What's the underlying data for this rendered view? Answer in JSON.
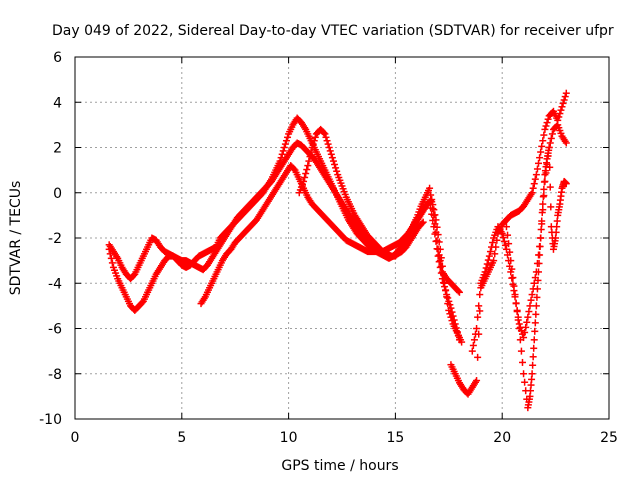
{
  "chart_data": {
    "type": "scatter",
    "title": "Day 049 of 2022, Sidereal Day-to-day VTEC variation (SDTVAR) for receiver ufpr",
    "xlabel": "GPS time / hours",
    "ylabel": "SDTVAR / TECUs",
    "xlim": [
      0,
      25
    ],
    "ylim": [
      -10,
      6
    ],
    "xticks": [
      "0",
      "5",
      "10",
      "15",
      "20",
      "25"
    ],
    "yticks": [
      "-10",
      "-8",
      "-6",
      "-4",
      "-2",
      "0",
      "2",
      "4",
      "6"
    ],
    "grid": true,
    "marker": "+",
    "marker_color": "#ff0000",
    "series": [
      {
        "x": [
          1.6,
          1.8,
          2.0,
          2.2,
          2.4,
          2.6,
          2.8,
          3.0,
          3.2,
          3.4,
          3.6,
          3.8,
          4.0,
          4.2,
          4.4,
          4.6,
          4.8,
          5.0,
          5.2,
          5.4,
          5.6,
          5.8,
          6.0,
          6.2,
          6.4,
          6.6,
          6.8,
          7.0,
          7.2,
          7.4,
          7.6,
          7.8,
          8.0,
          8.2,
          8.4,
          8.6,
          8.8,
          9.0,
          9.2,
          9.4,
          9.6,
          9.8,
          10.0,
          10.2,
          10.4,
          10.6,
          10.8,
          11.0,
          11.2,
          11.4,
          11.6,
          11.8,
          12.0,
          12.2,
          12.4,
          12.6,
          12.8,
          13.0,
          13.2,
          13.4,
          13.6,
          13.8,
          14.0,
          14.2,
          14.4,
          14.6,
          14.8,
          15.0,
          15.2,
          15.4,
          15.6,
          15.8,
          16.0,
          16.2,
          16.4,
          16.6,
          16.8,
          17.0,
          17.2,
          17.4,
          17.6,
          17.8,
          18.0
        ],
        "y": [
          -2.5,
          -3.3,
          -3.8,
          -4.2,
          -4.6,
          -5.0,
          -5.2,
          -5.0,
          -4.8,
          -4.4,
          -4.0,
          -3.6,
          -3.3,
          -3.0,
          -2.8,
          -2.8,
          -3.0,
          -3.2,
          -3.3,
          -3.2,
          -3.0,
          -2.8,
          -2.7,
          -2.6,
          -2.5,
          -2.4,
          -2.0,
          -1.8,
          -1.6,
          -1.4,
          -1.2,
          -1.0,
          -0.8,
          -0.6,
          -0.4,
          -0.2,
          0.0,
          0.3,
          0.6,
          1.0,
          1.4,
          2.0,
          2.6,
          3.0,
          3.3,
          3.1,
          2.8,
          2.4,
          2.0,
          1.6,
          1.2,
          0.8,
          0.4,
          0.0,
          -0.4,
          -0.8,
          -1.2,
          -1.5,
          -1.8,
          -2.0,
          -2.2,
          -2.4,
          -2.5,
          -2.6,
          -2.6,
          -2.7,
          -2.8,
          -2.8,
          -2.6,
          -2.3,
          -1.9,
          -1.5,
          -1.1,
          -0.6,
          -0.2,
          0.2,
          -1.0,
          -2.5,
          -3.5,
          -3.8,
          -4.0,
          -4.2,
          -4.4
        ]
      },
      {
        "x": [
          1.6,
          1.8,
          2.0,
          2.2,
          2.4,
          2.6,
          2.8,
          3.0,
          3.2,
          3.4,
          3.6,
          3.8,
          4.0,
          4.2,
          4.4,
          4.6,
          4.8,
          5.0,
          5.2,
          5.4,
          5.6,
          5.8,
          6.0,
          6.2,
          6.4,
          6.6,
          6.8,
          7.0,
          7.2,
          7.4,
          7.6,
          7.8,
          8.0,
          8.2,
          8.4,
          8.6,
          8.8,
          9.0,
          9.2,
          9.4,
          9.6,
          9.8,
          10.0,
          10.2,
          10.4,
          10.6,
          10.8,
          11.0,
          11.2,
          11.4,
          11.6,
          11.8,
          12.0,
          12.2,
          12.4,
          12.6,
          12.8,
          13.0,
          13.2,
          13.4,
          13.6,
          13.8,
          14.0,
          14.2,
          14.4,
          14.6,
          14.8,
          15.0,
          15.2,
          15.4,
          15.6,
          15.8,
          16.0,
          16.2,
          16.4,
          16.6,
          16.8,
          17.0,
          17.2,
          17.4,
          17.6,
          17.8,
          18.0
        ],
        "y": [
          -2.3,
          -2.6,
          -2.9,
          -3.3,
          -3.6,
          -3.8,
          -3.6,
          -3.2,
          -2.8,
          -2.4,
          -2.0,
          -2.1,
          -2.4,
          -2.6,
          -2.7,
          -2.8,
          -2.9,
          -3.0,
          -3.0,
          -3.1,
          -3.2,
          -3.3,
          -3.4,
          -3.2,
          -2.9,
          -2.6,
          -2.3,
          -2.0,
          -1.7,
          -1.4,
          -1.1,
          -0.9,
          -0.7,
          -0.5,
          -0.3,
          -0.1,
          0.1,
          0.3,
          0.5,
          0.8,
          1.1,
          1.4,
          1.7,
          2.0,
          2.2,
          2.1,
          1.9,
          1.7,
          1.5,
          1.2,
          0.9,
          0.6,
          0.3,
          0.0,
          -0.3,
          -0.6,
          -0.9,
          -1.2,
          -1.5,
          -1.8,
          -2.0,
          -2.3,
          -2.5,
          -2.6,
          -2.6,
          -2.5,
          -2.4,
          -2.3,
          -2.2,
          -2.0,
          -1.8,
          -1.5,
          -1.2,
          -0.9,
          -0.6,
          -0.4,
          -1.5,
          -2.8,
          -3.8,
          -4.5,
          -5.1,
          -5.8,
          -6.5
        ]
      },
      {
        "x": [
          5.9,
          6.1,
          6.3,
          6.5,
          6.7,
          6.9,
          7.1,
          7.3,
          7.5,
          7.7,
          7.9,
          8.1,
          8.3,
          8.5,
          8.7,
          8.9,
          9.1,
          9.3,
          9.5,
          9.7,
          9.9,
          10.1,
          10.3,
          10.5,
          10.7,
          10.9,
          11.1,
          11.3,
          11.5,
          11.7,
          11.9,
          12.1,
          12.3,
          12.5,
          12.7,
          12.9,
          13.1,
          13.3,
          13.5,
          13.7,
          13.9,
          14.1,
          14.3,
          14.5,
          14.7,
          14.9,
          15.1,
          15.3,
          15.5,
          15.7,
          15.9,
          16.1,
          16.3,
          16.5,
          16.7,
          16.9,
          17.1,
          17.3,
          17.5,
          17.7,
          17.9,
          18.1
        ],
        "y": [
          -4.9,
          -4.6,
          -4.2,
          -3.8,
          -3.4,
          -3.0,
          -2.7,
          -2.5,
          -2.2,
          -2.0,
          -1.8,
          -1.6,
          -1.4,
          -1.2,
          -0.9,
          -0.6,
          -0.3,
          0.0,
          0.3,
          0.6,
          0.9,
          1.2,
          1.0,
          0.6,
          0.2,
          -0.2,
          -0.5,
          -0.7,
          -0.9,
          -1.1,
          -1.3,
          -1.5,
          -1.7,
          -1.9,
          -2.1,
          -2.2,
          -2.3,
          -2.4,
          -2.5,
          -2.6,
          -2.6,
          -2.6,
          -2.7,
          -2.8,
          -2.9,
          -2.8,
          -2.6,
          -2.3,
          -2.0,
          -1.7,
          -1.4,
          -1.1,
          -0.8,
          -0.5,
          -0.3,
          -1.2,
          -2.5,
          -4.0,
          -5.2,
          -5.8,
          -6.2,
          -6.6
        ]
      },
      {
        "x": [
          10.5,
          10.7,
          10.9,
          11.1,
          11.3,
          11.5,
          11.7,
          11.9,
          12.1,
          12.3,
          12.5,
          12.7,
          12.9,
          13.1,
          13.3,
          13.5,
          13.7,
          13.9,
          14.1,
          14.3,
          14.5,
          14.7,
          14.9,
          15.1,
          15.3,
          15.5,
          15.7,
          15.9,
          16.1,
          16.3
        ],
        "y": [
          0.0,
          0.5,
          1.2,
          2.0,
          2.6,
          2.8,
          2.6,
          2.0,
          1.4,
          0.8,
          0.3,
          -0.2,
          -0.6,
          -1.0,
          -1.3,
          -1.6,
          -1.9,
          -2.1,
          -2.3,
          -2.5,
          -2.7,
          -2.8,
          -2.8,
          -2.7,
          -2.6,
          -2.4,
          -2.1,
          -1.8,
          -1.5,
          -1.3
        ]
      },
      {
        "x": [
          17.6,
          17.8,
          18.0,
          18.2,
          18.4,
          18.6,
          18.8,
          19.0,
          19.2,
          19.4,
          19.6,
          19.8,
          20.0,
          20.2,
          20.4,
          20.6,
          20.8,
          21.0,
          21.2,
          21.4,
          21.6,
          21.8,
          22.0,
          22.2,
          22.4,
          22.6,
          22.8,
          23.0
        ],
        "y": [
          -7.6,
          -8.0,
          -8.4,
          -8.7,
          -8.9,
          -8.6,
          -8.3,
          -4.2,
          -3.8,
          -3.4,
          -3.0,
          -1.8,
          -1.4,
          -1.2,
          -1.0,
          -0.9,
          -0.8,
          -0.6,
          -0.3,
          0.0,
          0.8,
          1.8,
          2.8,
          3.4,
          3.6,
          3.2,
          3.8,
          4.4
        ]
      },
      {
        "x": [
          18.6,
          18.8,
          19.0,
          19.2,
          19.4,
          19.6,
          19.8,
          20.0,
          20.2,
          20.4,
          20.6,
          20.8,
          21.0,
          21.2,
          21.4,
          21.6,
          21.8,
          22.0,
          22.2,
          22.4,
          22.6,
          22.8,
          23.0
        ],
        "y": [
          -7.0,
          -6.0,
          -4.0,
          -3.5,
          -2.8,
          -2.0,
          -1.5,
          -1.8,
          -2.5,
          -3.5,
          -4.6,
          -5.8,
          -6.4,
          -5.5,
          -4.5,
          -3.5,
          -2.0,
          0.5,
          2.0,
          2.8,
          3.0,
          2.5,
          2.2
        ]
      },
      {
        "x": [
          20.2,
          20.4,
          20.6,
          20.8,
          21.0,
          21.2,
          21.3,
          21.4,
          21.5,
          21.6,
          21.7,
          21.8,
          21.9,
          22.0,
          22.1,
          22.2,
          22.3,
          22.4,
          22.5,
          22.6,
          22.7,
          22.8,
          22.9,
          23.0
        ],
        "y": [
          -1.5,
          -3.0,
          -4.5,
          -6.0,
          -8.0,
          -9.5,
          -9.0,
          -8.0,
          -6.5,
          -5.0,
          -3.5,
          -2.0,
          -0.5,
          0.8,
          1.5,
          2.0,
          -1.5,
          -2.5,
          -2.0,
          -1.0,
          -0.5,
          0.2,
          0.5,
          0.4
        ]
      }
    ]
  }
}
